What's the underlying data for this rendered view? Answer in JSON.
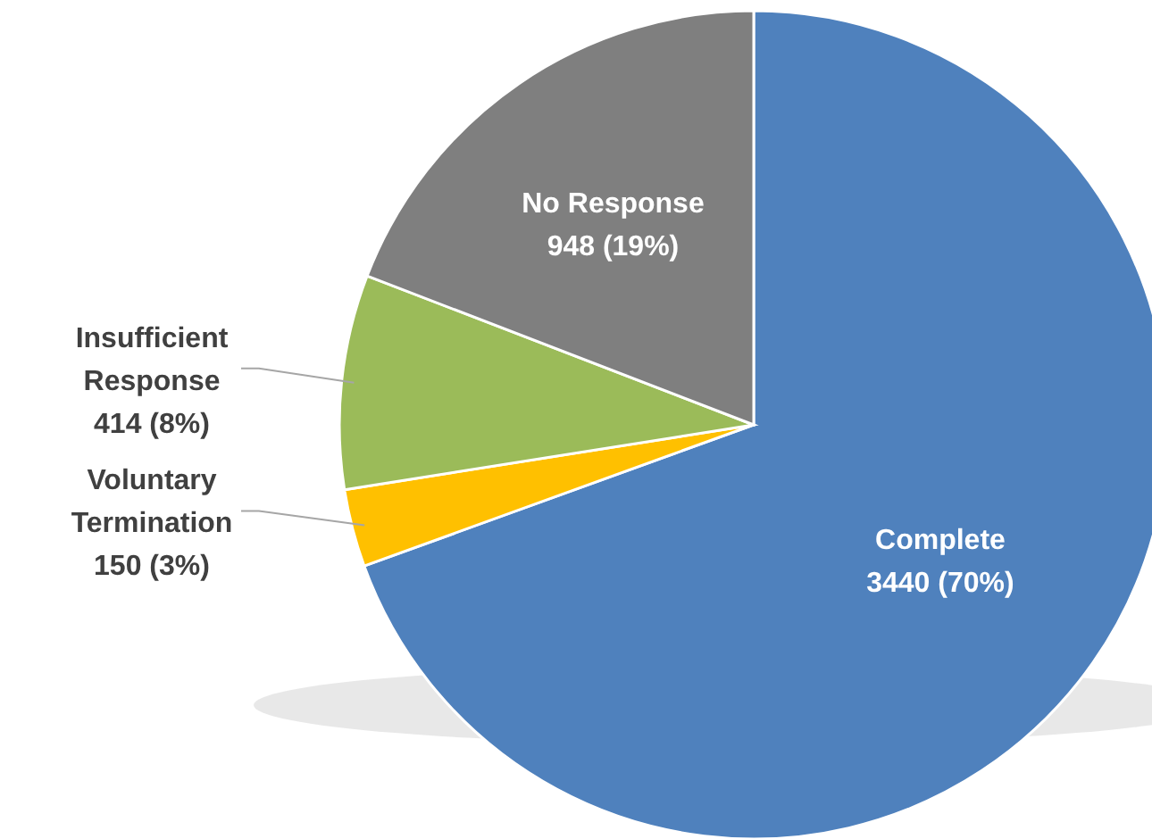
{
  "chart_data": {
    "type": "pie",
    "categories": [
      "Complete",
      "Voluntary Termination",
      "Insufficient Response",
      "No Response"
    ],
    "values": [
      3440,
      150,
      414,
      948
    ],
    "colors": [
      "#4f81bd",
      "#ffc000",
      "#9bbb59",
      "#7f7f7f"
    ],
    "value_labels": [
      "3440 (70%)",
      "150 (3%)",
      "414 (8%)",
      "948 (19%)"
    ]
  }
}
